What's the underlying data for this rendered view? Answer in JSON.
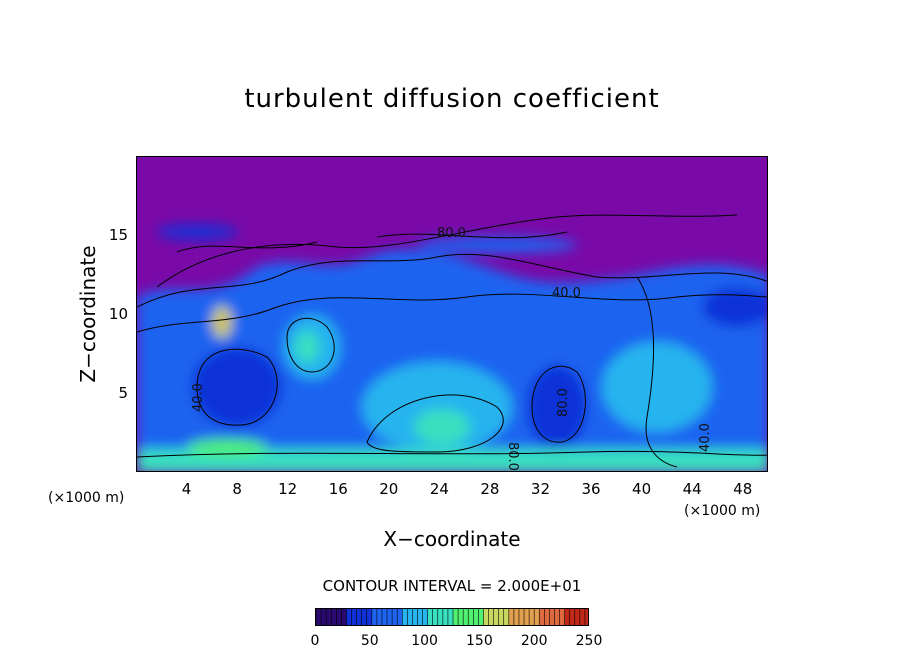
{
  "chart_data": {
    "type": "heatmap",
    "title": "turbulent diffusion coefficient",
    "xlabel": "X−coordinate",
    "ylabel": "Z−coordinate",
    "x_unit": "(×1000 m)",
    "y_unit": "(×1000 m)",
    "xlim": [
      0,
      50
    ],
    "ylim": [
      0,
      20
    ],
    "x_ticks": [
      4,
      8,
      12,
      16,
      20,
      24,
      28,
      32,
      36,
      40,
      44,
      48
    ],
    "y_ticks": [
      5,
      10,
      15
    ],
    "contour_interval": "CONTOUR INTERVAL = 2.000E+01",
    "contour_labels": [
      "80.0",
      "40.0",
      "40.0",
      "80.0",
      "80.0",
      "40.0"
    ],
    "colorbar": {
      "range": [
        0,
        250
      ],
      "ticks": [
        0,
        50,
        100,
        150,
        200,
        250
      ],
      "colors": [
        "#2a0a6e",
        "#1030d8",
        "#1e64f0",
        "#28b4ee",
        "#38e0c0",
        "#50f070",
        "#c8d860",
        "#e0a050",
        "#e06a40",
        "#c02818"
      ]
    },
    "background_color": "#7a0aa8"
  }
}
